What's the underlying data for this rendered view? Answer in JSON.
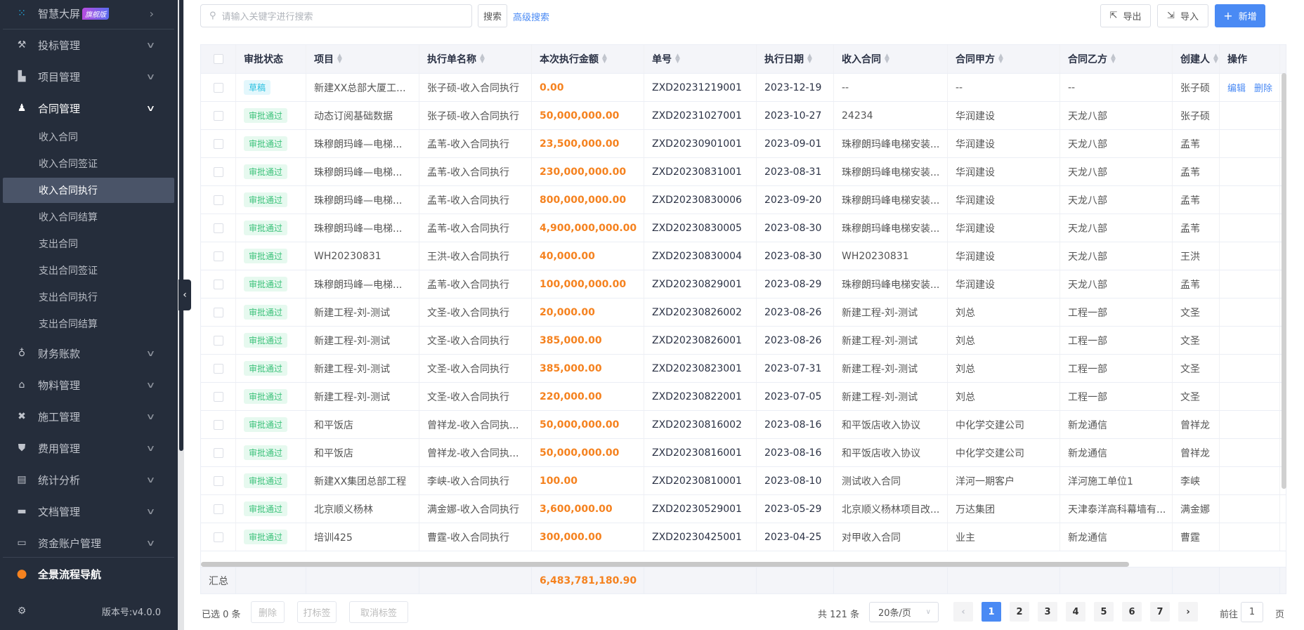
{
  "sidebar": {
    "dashboard": {
      "label": "智慧大屏",
      "badge": "旗舰版"
    },
    "groups": [
      {
        "label": "投标管理",
        "icon": "gavel-icon"
      },
      {
        "label": "项目管理",
        "icon": "building-icon"
      },
      {
        "label": "合同管理",
        "icon": "stamp-icon"
      }
    ],
    "contract_sub": [
      "收入合同",
      "收入合同签证",
      "收入合同执行",
      "收入合同结算",
      "支出合同",
      "支出合同签证",
      "支出合同执行",
      "支出合同结算"
    ],
    "active_sub": "收入合同执行",
    "groups2": [
      {
        "label": "财务账款",
        "icon": "money-bag-icon"
      },
      {
        "label": "物料管理",
        "icon": "warehouse-icon"
      },
      {
        "label": "施工管理",
        "icon": "tools-icon"
      },
      {
        "label": "费用管理",
        "icon": "shield-yen-icon"
      },
      {
        "label": "统计分析",
        "icon": "chart-box-icon"
      },
      {
        "label": "文档管理",
        "icon": "folder-icon"
      },
      {
        "label": "资金账户管理",
        "icon": "card-icon"
      }
    ],
    "nav": "全景流程导航",
    "version": "版本号:v4.0.0"
  },
  "toolbar": {
    "search_placeholder": "请输入关键字进行搜索",
    "search": "搜索",
    "advanced": "高级搜索",
    "export": "导出",
    "import": "导入",
    "add": "新增"
  },
  "table": {
    "headers": [
      "审批状态",
      "项目",
      "执行单名称",
      "本次执行金额",
      "单号",
      "执行日期",
      "收入合同",
      "合同甲方",
      "合同乙方",
      "创建人",
      "操作"
    ],
    "sortable": [
      false,
      true,
      true,
      true,
      true,
      true,
      true,
      true,
      true,
      true,
      false
    ],
    "actions": {
      "edit": "编辑",
      "delete": "删除"
    },
    "rows": [
      [
        "草稿",
        "新建XX总部大厦工...",
        "张子硕-收入合同执行",
        "0.00",
        "ZXD20231219001",
        "2023-12-19",
        "--",
        "--",
        "--",
        "张子硕"
      ],
      [
        "审批通过",
        "动态订阅基础数据",
        "张子硕-收入合同执行",
        "50,000,000.00",
        "ZXD20231027001",
        "2023-10-27",
        "24234",
        "华润建设",
        "天龙八部",
        "张子硕"
      ],
      [
        "审批通过",
        "珠穆朗玛峰—电梯...",
        "孟苇-收入合同执行",
        "23,500,000.00",
        "ZXD20230901001",
        "2023-09-01",
        "珠穆朗玛峰电梯安装...",
        "华润建设",
        "天龙八部",
        "孟苇"
      ],
      [
        "审批通过",
        "珠穆朗玛峰—电梯...",
        "孟苇-收入合同执行",
        "230,000,000.00",
        "ZXD20230831001",
        "2023-08-31",
        "珠穆朗玛峰电梯安装...",
        "华润建设",
        "天龙八部",
        "孟苇"
      ],
      [
        "审批通过",
        "珠穆朗玛峰—电梯...",
        "孟苇-收入合同执行",
        "800,000,000.00",
        "ZXD20230830006",
        "2023-09-20",
        "珠穆朗玛峰电梯安装...",
        "华润建设",
        "天龙八部",
        "孟苇"
      ],
      [
        "审批通过",
        "珠穆朗玛峰—电梯...",
        "孟苇-收入合同执行",
        "4,900,000,000.00",
        "ZXD20230830005",
        "2023-08-30",
        "珠穆朗玛峰电梯安装...",
        "华润建设",
        "天龙八部",
        "孟苇"
      ],
      [
        "审批通过",
        "WH20230831",
        "王洪-收入合同执行",
        "40,000.00",
        "ZXD20230830004",
        "2023-08-30",
        "WH20230831",
        "华润建设",
        "天龙八部",
        "王洪"
      ],
      [
        "审批通过",
        "珠穆朗玛峰—电梯...",
        "孟苇-收入合同执行",
        "100,000,000.00",
        "ZXD20230829001",
        "2023-08-29",
        "珠穆朗玛峰电梯安装...",
        "华润建设",
        "天龙八部",
        "孟苇"
      ],
      [
        "审批通过",
        "新建工程-刘-测试",
        "文圣-收入合同执行",
        "20,000.00",
        "ZXD20230826002",
        "2023-08-26",
        "新建工程-刘-测试",
        "刘总",
        "工程一部",
        "文圣"
      ],
      [
        "审批通过",
        "新建工程-刘-测试",
        "文圣-收入合同执行",
        "385,000.00",
        "ZXD20230826001",
        "2023-08-26",
        "新建工程-刘-测试",
        "刘总",
        "工程一部",
        "文圣"
      ],
      [
        "审批通过",
        "新建工程-刘-测试",
        "文圣-收入合同执行",
        "385,000.00",
        "ZXD20230823001",
        "2023-07-31",
        "新建工程-刘-测试",
        "刘总",
        "工程一部",
        "文圣"
      ],
      [
        "审批通过",
        "新建工程-刘-测试",
        "文圣-收入合同执行",
        "220,000.00",
        "ZXD20230822001",
        "2023-07-05",
        "新建工程-刘-测试",
        "刘总",
        "工程一部",
        "文圣"
      ],
      [
        "审批通过",
        "和平饭店",
        "曾祥龙-收入合同执...",
        "50,000,000.00",
        "ZXD20230816002",
        "2023-08-16",
        "和平饭店收入协议",
        "中化学交建公司",
        "新龙通信",
        "曾祥龙"
      ],
      [
        "审批通过",
        "和平饭店",
        "曾祥龙-收入合同执...",
        "50,000,000.00",
        "ZXD20230816001",
        "2023-08-16",
        "和平饭店收入协议",
        "中化学交建公司",
        "新龙通信",
        "曾祥龙"
      ],
      [
        "审批通过",
        "新建XX集团总部工程",
        "李峡-收入合同执行",
        "100.00",
        "ZXD20230810001",
        "2023-08-10",
        "测试收入合同",
        "洋河一期客户",
        "洋河施工单位1",
        "李峡"
      ],
      [
        "审批通过",
        "北京顺义杨林",
        "满金娜-收入合同执行",
        "3,600,000.00",
        "ZXD20230529001",
        "2023-05-29",
        "北京顺义杨林项目改...",
        "万达集团",
        "天津泰洋高科幕墙有...",
        "满金娜"
      ],
      [
        "审批通过",
        "培训425",
        "曹霆-收入合同执行",
        "300,000.00",
        "ZXD20230425001",
        "2023-04-25",
        "对甲收入合同",
        "业主",
        "新龙通信",
        "曹霆"
      ]
    ],
    "summary_label": "汇总",
    "summary_amount": "6,483,781,180.90"
  },
  "footer": {
    "selected": "已选 0 条",
    "delete": "删除",
    "tag": "打标签",
    "untag": "取消标签",
    "total": "共 121 条",
    "page_size": "20条/页",
    "pages": [
      "1",
      "2",
      "3",
      "4",
      "5",
      "6",
      "7"
    ],
    "current_page": "1",
    "goto": "前往",
    "goto_value": "1",
    "page_unit": "页"
  },
  "colors": {
    "sidebar": "#252d3b",
    "primary": "#4a8af4",
    "amount": "#f5821f",
    "approved": "#3cc27a",
    "draft": "#29c0e0"
  }
}
